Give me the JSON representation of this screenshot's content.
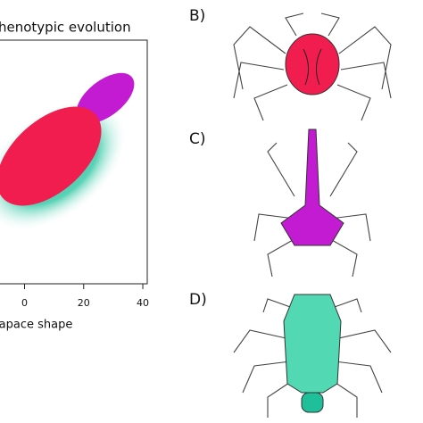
{
  "panel_a": {
    "title": "henotypic evolution",
    "xlabel": "apace shape",
    "xlim": [
      -8.6,
      41.5
    ],
    "xticks": [
      0,
      20,
      40
    ]
  },
  "panels": [
    "B)",
    "C)",
    "D)"
  ]
}
